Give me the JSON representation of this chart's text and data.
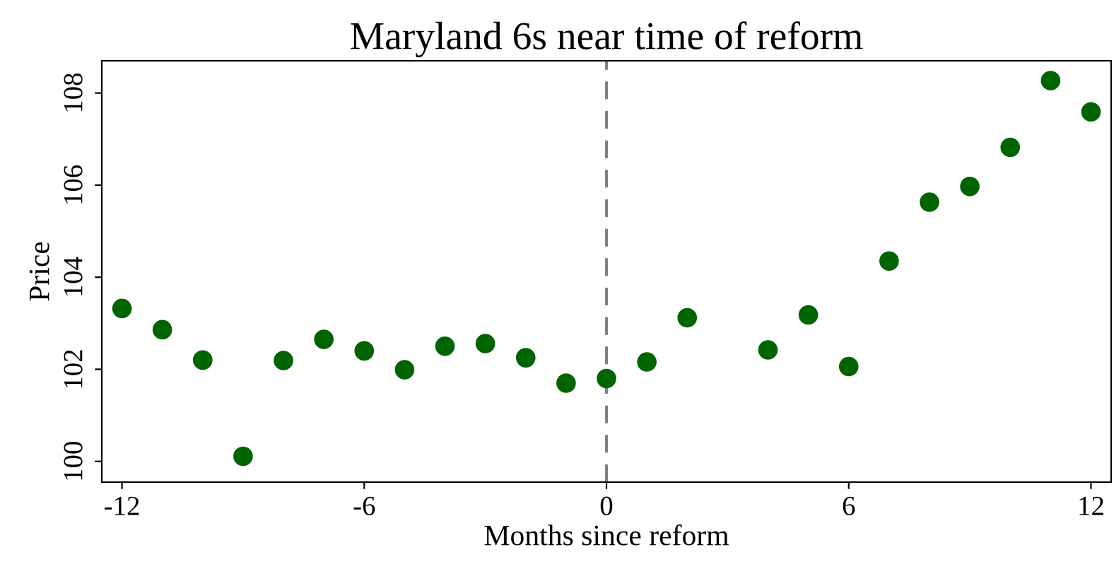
{
  "chart_data": {
    "type": "scatter",
    "title": "Maryland 6s near time of reform",
    "xlabel": "Months since reform",
    "ylabel": "Price",
    "x": [
      -12,
      -11,
      -10,
      -9,
      -8,
      -7,
      -6,
      -5,
      -4,
      -3,
      -2,
      -1,
      0,
      1,
      2,
      4,
      5,
      6,
      7,
      8,
      9,
      10,
      11,
      12
    ],
    "series": [
      {
        "color": "#006400",
        "values": [
          103.32,
          102.86,
          102.2,
          100.11,
          102.19,
          102.65,
          102.4,
          101.99,
          102.5,
          102.56,
          102.25,
          101.7,
          101.8,
          102.16,
          103.12,
          102.42,
          103.18,
          102.06,
          104.35,
          105.63,
          105.97,
          106.82,
          108.27,
          107.59
        ]
      }
    ],
    "xlim": [
      -12.5,
      12.5
    ],
    "xticks": [
      -12,
      -6,
      0,
      6,
      12
    ],
    "ylim": [
      99.55,
      108.7
    ],
    "yticks": [
      100,
      102,
      104,
      106,
      108
    ],
    "ref_lines": [
      {
        "axis": "x",
        "value": 0,
        "color": "#808080",
        "line_style": "dashed"
      }
    ],
    "marker": "circle",
    "grid": false,
    "legend": false
  }
}
